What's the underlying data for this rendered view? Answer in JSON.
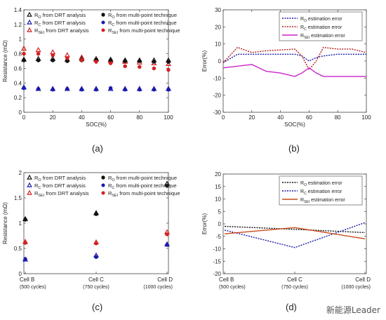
{
  "panel_labels": [
    "(a)",
    "(b)",
    "(c)",
    "(d)"
  ],
  "watermark": "新能源Leader",
  "colors": {
    "black": "#111111",
    "blue": "#1a1aaa",
    "red": "#d42020",
    "magenta": "#cc22cc",
    "gray_marker": "#888888"
  },
  "chart_data": [
    {
      "id": "a",
      "type": "scatter",
      "title": "",
      "xlabel": "SOC(%)",
      "ylabel": "Resistance (mΩ)",
      "xlim": [
        0,
        100
      ],
      "ylim": [
        0,
        1.4
      ],
      "xticks": [
        "0",
        "20",
        "40",
        "60",
        "80",
        "100"
      ],
      "yticks": [
        "0",
        "0.2",
        "0.4",
        "0.6",
        "0.8",
        "1",
        "1.2",
        "1.4"
      ],
      "xtick_values": [
        0,
        20,
        40,
        60,
        80,
        100
      ],
      "ytick_values": [
        0,
        0.2,
        0.4,
        0.6,
        0.8,
        1,
        1.2,
        1.4
      ],
      "legend_position": "top-left",
      "x": [
        0,
        10,
        20,
        30,
        40,
        50,
        60,
        70,
        80,
        90,
        100
      ],
      "series": [
        {
          "name": "R_O from DRT analysis",
          "main": "R",
          "sub": "O",
          "suffix": " from DRT analysis",
          "color": "#111111",
          "marker": "tri-open",
          "values": [
            0.72,
            0.73,
            0.73,
            0.72,
            0.73,
            0.73,
            0.72,
            0.71,
            0.71,
            0.71,
            0.71
          ]
        },
        {
          "name": "R_C from DRT analysis",
          "main": "R",
          "sub": "C",
          "suffix": " from DRT analysis",
          "color": "#1a1aaa",
          "marker": "tri-open",
          "values": [
            0.34,
            0.32,
            0.32,
            0.32,
            0.32,
            0.32,
            0.32,
            0.32,
            0.32,
            0.32,
            0.32
          ]
        },
        {
          "name": "R_SEI from DRT analysis",
          "main": "R",
          "sub": "SEI",
          "suffix": " from DRT analysis",
          "color": "#d42020",
          "marker": "tri-open",
          "values": [
            0.87,
            0.85,
            0.82,
            0.78,
            0.75,
            0.72,
            0.7,
            0.69,
            0.68,
            0.67,
            0.66
          ]
        },
        {
          "name": "R_O from multi-point technique",
          "main": "R",
          "sub": "O",
          "suffix": " from multi-point technique",
          "color": "#111111",
          "marker": "star",
          "values": [
            0.71,
            0.71,
            0.71,
            0.7,
            0.71,
            0.72,
            0.71,
            0.7,
            0.7,
            0.69,
            0.69
          ]
        },
        {
          "name": "R_C from multi-point technique",
          "main": "R",
          "sub": "C",
          "suffix": " from multi-point technique",
          "color": "#1a1aaa",
          "marker": "dot",
          "values": [
            0.33,
            0.32,
            0.31,
            0.32,
            0.31,
            0.31,
            0.33,
            0.31,
            0.31,
            0.31,
            0.31
          ]
        },
        {
          "name": "R_SEI from multi-point technique",
          "main": "R",
          "sub": "SEI",
          "suffix": " from multi-point technique",
          "color": "#d42020",
          "marker": "dot",
          "values": [
            0.8,
            0.8,
            0.78,
            0.74,
            0.71,
            0.69,
            0.67,
            0.63,
            0.62,
            0.6,
            0.58
          ]
        }
      ]
    },
    {
      "id": "b",
      "type": "line",
      "title": "",
      "xlabel": "SOC(%)",
      "ylabel": "Error(%)",
      "xlim": [
        0,
        100
      ],
      "ylim": [
        -30,
        30
      ],
      "xticks": [
        "0",
        "20",
        "40",
        "60",
        "80",
        "100"
      ],
      "yticks": [
        "-30",
        "-20",
        "-10",
        "0",
        "10",
        "20",
        "30"
      ],
      "xtick_values": [
        0,
        20,
        40,
        60,
        80,
        100
      ],
      "ytick_values": [
        -30,
        -20,
        -10,
        0,
        10,
        20,
        30
      ],
      "legend_position": "top-right",
      "x": [
        0,
        10,
        20,
        30,
        40,
        50,
        55,
        60,
        65,
        70,
        80,
        90,
        100
      ],
      "series": [
        {
          "name": "R_O estimation error",
          "main": "R",
          "sub": "O",
          "suffix": " estimation error",
          "color": "#1a1aaa",
          "dash": "2,1.5",
          "values": [
            -1,
            4,
            4,
            4,
            4,
            4,
            3,
            0,
            2,
            3,
            4,
            4,
            4
          ]
        },
        {
          "name": "R_C estimation error",
          "main": "R",
          "sub": "C",
          "suffix": " estimation error",
          "color": "#b41a1a",
          "dash": "2,1.5",
          "values": [
            -1,
            8,
            5,
            6,
            6.5,
            7,
            3,
            -5,
            0,
            8,
            7,
            7,
            5
          ]
        },
        {
          "name": "R_SEI estimation error",
          "main": "R",
          "sub": "SEI",
          "suffix": " estimation error",
          "color": "#cc22cc",
          "dash": "",
          "values": [
            -4,
            -3,
            -2,
            -6,
            -7,
            -9,
            -7,
            -4,
            -7,
            -9,
            -9,
            -9,
            -9
          ]
        }
      ]
    },
    {
      "id": "c",
      "type": "scatter",
      "title": "",
      "xlabel": "",
      "ylabel": "Resistance (mΩ)",
      "ylim": [
        0,
        2
      ],
      "yticks": [
        "0",
        "0.5",
        "1",
        "1.5",
        "2"
      ],
      "ytick_values": [
        0,
        0.5,
        1,
        1.5,
        2
      ],
      "categories": [
        [
          "Cell B",
          "(500 cycles)"
        ],
        [
          "Cell C",
          "(750 cycles)"
        ],
        [
          "Cell D",
          "(1000 cycles)"
        ]
      ],
      "legend_position": "top-left",
      "series": [
        {
          "name": "R_O from DRT analysis",
          "main": "R",
          "sub": "O",
          "suffix": " from DRT analysis",
          "color": "#111111",
          "marker": "tri-open",
          "values": [
            1.08,
            1.2,
            1.78
          ]
        },
        {
          "name": "R_C from DRT analysis",
          "main": "R",
          "sub": "C",
          "suffix": " from DRT analysis",
          "color": "#1a1aaa",
          "marker": "tri-open",
          "values": [
            0.28,
            0.36,
            0.58
          ]
        },
        {
          "name": "R_SEI from DRT analysis",
          "main": "R",
          "sub": "SEI",
          "suffix": " from DRT analysis",
          "color": "#d42020",
          "marker": "tri-open",
          "values": [
            0.63,
            0.62,
            0.82
          ]
        },
        {
          "name": "R_O from multi-point technique",
          "main": "R",
          "sub": "O",
          "suffix": " from multi-point technique",
          "color": "#111111",
          "marker": "star",
          "values": [
            1.07,
            1.18,
            1.74
          ]
        },
        {
          "name": "R_C from multi-point technique",
          "main": "R",
          "sub": "C",
          "suffix": " from multi-point technique",
          "color": "#1a1aaa",
          "marker": "dot",
          "values": [
            0.29,
            0.33,
            0.57
          ]
        },
        {
          "name": "R_SEI from multi-point technique",
          "main": "R",
          "sub": "SEI",
          "suffix": " from multi-point technique",
          "color": "#d42020",
          "marker": "dot",
          "values": [
            0.61,
            0.6,
            0.78
          ]
        }
      ]
    },
    {
      "id": "d",
      "type": "line",
      "title": "",
      "xlabel": "",
      "ylabel": "Error(%)",
      "ylim": [
        -20,
        20
      ],
      "yticks": [
        "-20",
        "-15",
        "-10",
        "-5",
        "0",
        "5",
        "10",
        "15",
        "20"
      ],
      "ytick_values": [
        -20,
        -15,
        -10,
        -5,
        0,
        5,
        10,
        15,
        20
      ],
      "categories": [
        [
          "Cell B",
          "(500 cycles)"
        ],
        [
          "Cell C",
          "(750 cycles)"
        ],
        [
          "Cell D",
          "(1000 cycles)"
        ]
      ],
      "legend_position": "top-right",
      "series": [
        {
          "name": "R_O estimation error",
          "main": "R",
          "sub": "O",
          "suffix": " estimation error",
          "color": "#111111",
          "dash": "2,1.5",
          "values": [
            -1,
            -2.2,
            -3.5
          ]
        },
        {
          "name": "R_C estimation error",
          "main": "R",
          "sub": "C",
          "suffix": " estimation error",
          "color": "#1a1aaa",
          "dash": "2,1.5",
          "values": [
            -2.5,
            -9.5,
            0.5
          ]
        },
        {
          "name": "R_SEI estimation error",
          "main": "R",
          "sub": "SEI",
          "suffix": " estimation error",
          "color": "#c84a1a",
          "dash": "",
          "values": [
            -4,
            -1.5,
            -6
          ]
        }
      ]
    }
  ]
}
